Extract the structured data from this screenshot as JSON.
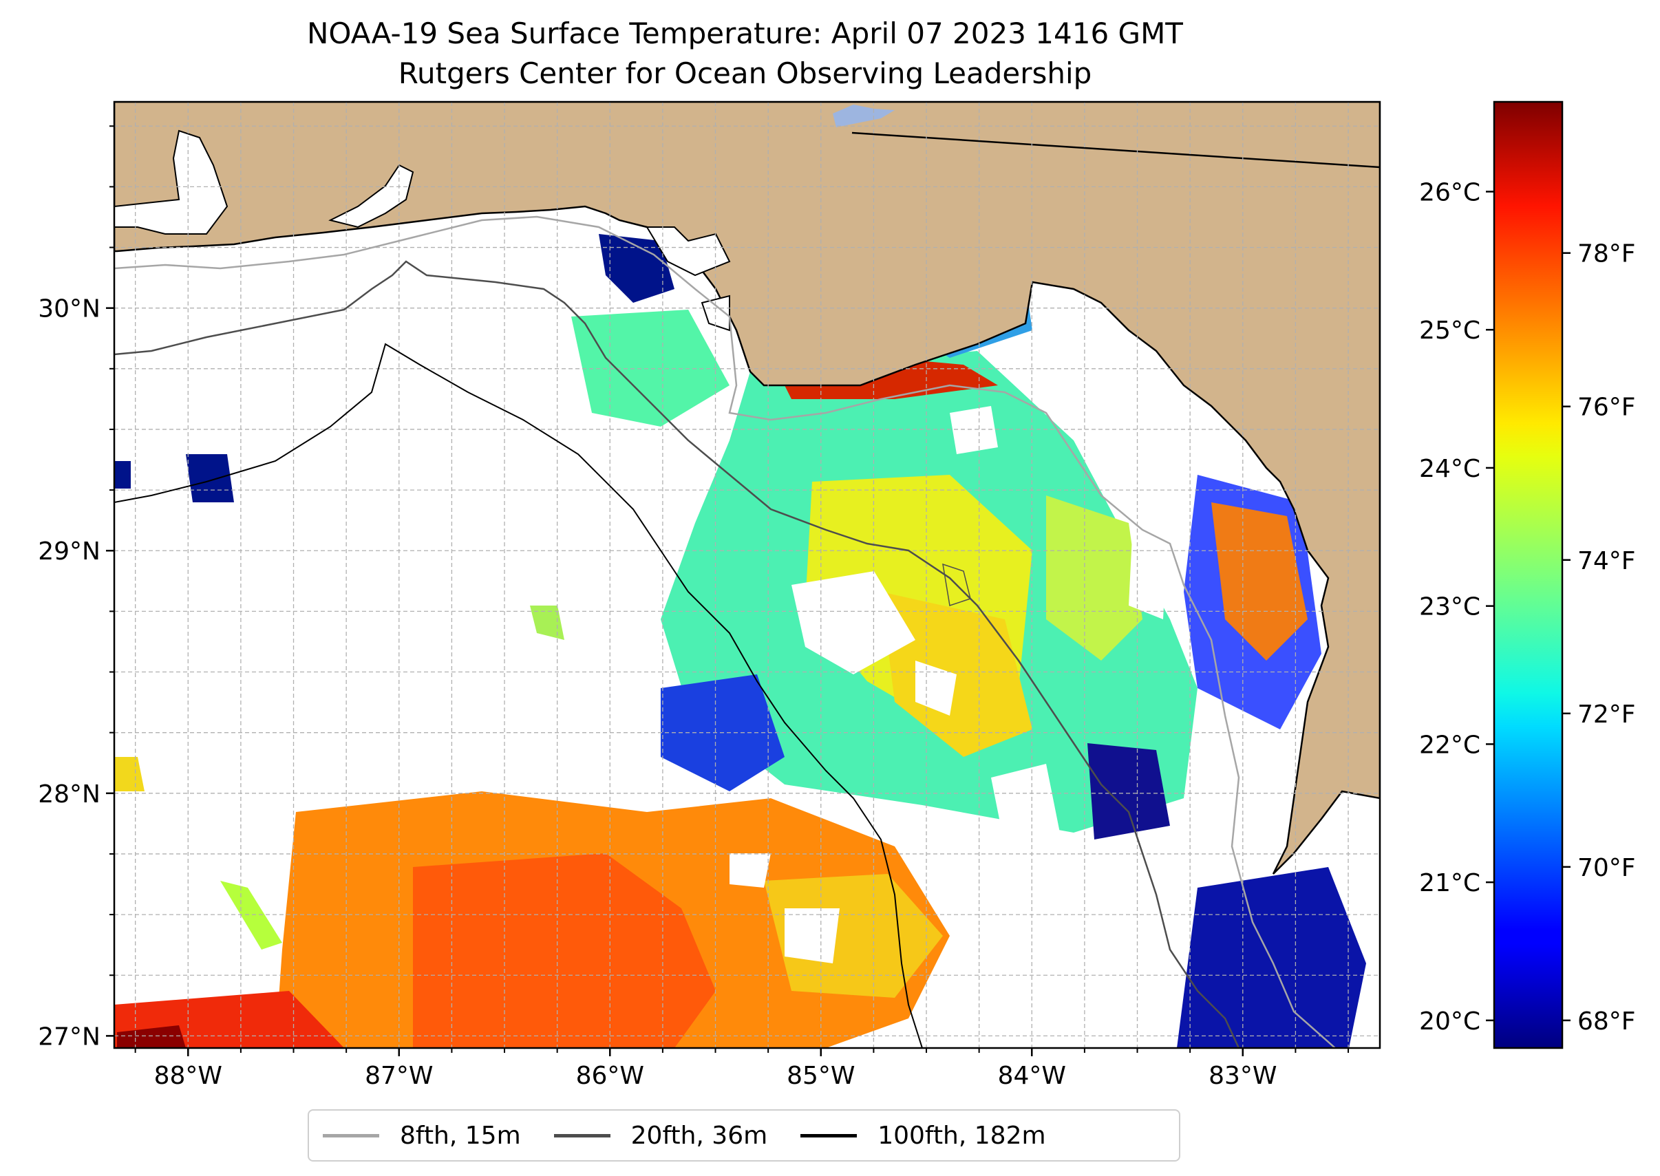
{
  "title": {
    "line1": "NOAA-19 Sea Surface Temperature: April 07 2023 1416 GMT",
    "line2": "Rutgers Center for Ocean Observing Leadership"
  },
  "map": {
    "lon_range": [
      -88.35,
      -82.35
    ],
    "lat_range": [
      26.95,
      30.85
    ],
    "lon_ticks": [
      {
        "value": -88,
        "label": "88°W"
      },
      {
        "value": -87,
        "label": "87°W"
      },
      {
        "value": -86,
        "label": "86°W"
      },
      {
        "value": -85,
        "label": "85°W"
      },
      {
        "value": -84,
        "label": "84°W"
      },
      {
        "value": -83,
        "label": "83°W"
      }
    ],
    "lat_ticks": [
      {
        "value": 27,
        "label": "27°N"
      },
      {
        "value": 28,
        "label": "28°N"
      },
      {
        "value": 29,
        "label": "29°N"
      },
      {
        "value": 30,
        "label": "30°N"
      }
    ],
    "colors": {
      "land": "#d2b48c",
      "water_nodata": "#ffffff",
      "grid": "#b0b0b0",
      "lake": "#9db5e0"
    }
  },
  "colorbar": {
    "celsius": [
      {
        "value": 20,
        "label": "20°C"
      },
      {
        "value": 21,
        "label": "21°C"
      },
      {
        "value": 22,
        "label": "22°C"
      },
      {
        "value": 23,
        "label": "23°C"
      },
      {
        "value": 24,
        "label": "24°C"
      },
      {
        "value": 25,
        "label": "25°C"
      },
      {
        "value": 26,
        "label": "26°C"
      }
    ],
    "fahrenheit": [
      {
        "value": 68,
        "label": "68°F"
      },
      {
        "value": 70,
        "label": "70°F"
      },
      {
        "value": 72,
        "label": "72°F"
      },
      {
        "value": 74,
        "label": "74°F"
      },
      {
        "value": 76,
        "label": "76°F"
      },
      {
        "value": 78,
        "label": "78°F"
      }
    ],
    "range_c": [
      19.8,
      26.65
    ]
  },
  "legend": [
    {
      "label": "8fth, 15m",
      "color": "#a6a6a6"
    },
    {
      "label": "20fth, 36m",
      "color": "#4d4d4d"
    },
    {
      "label": "100fth, 182m",
      "color": "#000000"
    }
  ]
}
